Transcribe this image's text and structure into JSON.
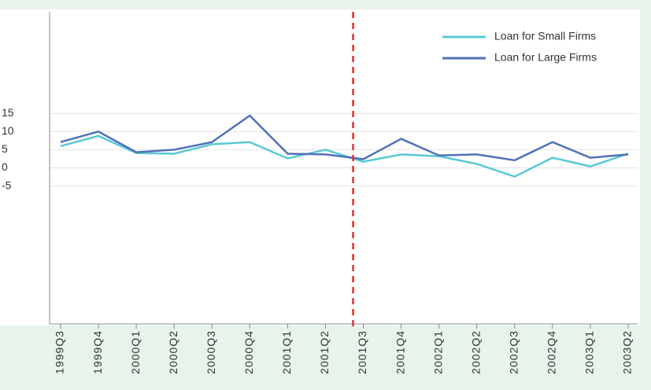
{
  "chart_data": {
    "type": "line",
    "categories": [
      "1999Q3",
      "1999Q4",
      "2000Q1",
      "2000Q2",
      "2000Q3",
      "2000Q4",
      "2001Q1",
      "2001Q2",
      "2001Q3",
      "2001Q4",
      "2002Q1",
      "2002Q2",
      "2002Q3",
      "2002Q4",
      "2003Q1",
      "2003Q2"
    ],
    "series": [
      {
        "name": "Loan for Small Firms",
        "color": "#5bc8d4",
        "values": [
          6,
          8.8,
          4.1,
          3.9,
          6.5,
          7.1,
          2.6,
          5,
          1.7,
          3.7,
          3.2,
          1.1,
          -2.4,
          2.8,
          0.4,
          3.9
        ]
      },
      {
        "name": "Loan for Large Firms",
        "color": "#4f72b8",
        "values": [
          7.1,
          10,
          4.3,
          5,
          7.1,
          14.4,
          3.9,
          3.7,
          2.4,
          8,
          3.4,
          3.7,
          2.1,
          7.1,
          2.8,
          3.7
        ]
      }
    ],
    "ylim": [
      -43,
      43
    ],
    "yticks": [
      15,
      10,
      5,
      0,
      -5
    ],
    "grid": true,
    "legend": "top-right",
    "reference_line": {
      "category": "2001Q3",
      "color": "#e03030"
    }
  }
}
